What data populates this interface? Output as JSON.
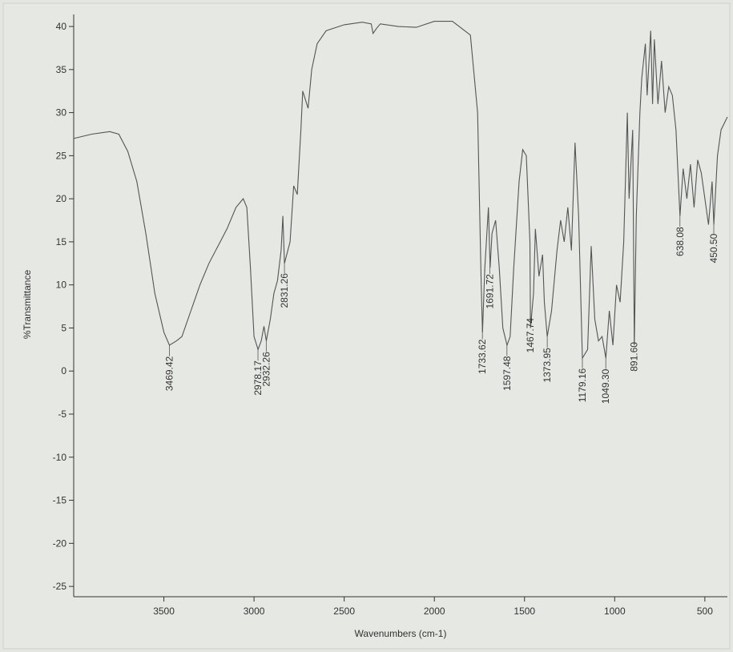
{
  "chart_data": {
    "type": "line",
    "y_label": "%Transmittance",
    "x_label": "Wavenumbers (cm-1)",
    "color": "#555555",
    "xlim": [
      4000,
      375
    ],
    "ylim": [
      -26.2,
      41.4
    ],
    "xticks": [
      3500,
      3000,
      2500,
      2000,
      1500,
      1000,
      500
    ],
    "yticks": [
      -25,
      -20,
      -15,
      -10,
      -5,
      0,
      5,
      10,
      15,
      20,
      25,
      30,
      35,
      40
    ],
    "x": [
      4000,
      3900,
      3800,
      3750,
      3700,
      3650,
      3600,
      3550,
      3500,
      3469,
      3430,
      3400,
      3350,
      3300,
      3250,
      3200,
      3150,
      3100,
      3060,
      3040,
      3020,
      3000,
      2978,
      2960,
      2945,
      2932,
      2910,
      2890,
      2870,
      2850,
      2840,
      2831,
      2800,
      2780,
      2760,
      2740,
      2730,
      2700,
      2680,
      2650,
      2600,
      2500,
      2400,
      2350,
      2340,
      2320,
      2300,
      2200,
      2100,
      2000,
      1900,
      1800,
      1760,
      1740,
      1733,
      1720,
      1700,
      1691,
      1680,
      1660,
      1640,
      1620,
      1597,
      1580,
      1560,
      1530,
      1510,
      1490,
      1470,
      1467,
      1450,
      1440,
      1420,
      1400,
      1390,
      1374,
      1350,
      1320,
      1300,
      1280,
      1260,
      1240,
      1220,
      1200,
      1179,
      1150,
      1130,
      1110,
      1090,
      1070,
      1049,
      1030,
      1010,
      990,
      970,
      950,
      930,
      920,
      900,
      891,
      880,
      860,
      850,
      830,
      820,
      800,
      790,
      780,
      760,
      740,
      720,
      700,
      680,
      660,
      638,
      620,
      600,
      580,
      560,
      540,
      520,
      500,
      480,
      460,
      450,
      430,
      410,
      375
    ],
    "values": [
      27,
      27.5,
      27.8,
      27.5,
      25.5,
      22,
      16,
      9,
      4.5,
      3,
      3.5,
      4,
      7,
      10,
      12.5,
      14.5,
      16.5,
      19,
      20,
      19,
      12,
      4,
      2.5,
      3.5,
      5.2,
      3.5,
      6,
      9,
      10.5,
      14,
      18,
      12.5,
      15,
      21.5,
      20.5,
      28,
      32.5,
      30.5,
      35,
      38,
      39.5,
      40.2,
      40.5,
      40.3,
      39.2,
      39.8,
      40.3,
      40,
      39.9,
      40.6,
      40.6,
      39,
      30,
      10,
      4.5,
      12,
      19,
      12,
      16,
      17.5,
      12,
      5,
      3,
      4,
      12,
      22,
      25.7,
      25,
      15,
      5,
      9,
      16.5,
      11,
      13.5,
      8,
      4,
      7,
      14,
      17.5,
      15,
      19,
      14,
      26.5,
      18,
      1.5,
      2.5,
      14.5,
      6,
      3.5,
      4,
      1.5,
      7,
      3,
      10,
      8,
      15,
      30,
      20,
      28,
      3,
      18,
      30,
      34,
      38,
      32,
      39.5,
      31,
      38.5,
      31,
      36,
      30,
      33,
      32,
      28,
      18,
      23.5,
      20,
      24,
      19,
      24.5,
      23,
      20,
      17,
      22,
      17,
      25,
      28,
      29.5
    ],
    "peaks": [
      3469.42,
      2978.17,
      2932.26,
      2831.26,
      1733.62,
      1691.72,
      1597.48,
      1467.74,
      1373.95,
      1179.16,
      {
        "value": 1049.3,
        "label": "1049.30"
      },
      {
        "value": 891.6,
        "label": "891.60"
      },
      638.08,
      {
        "value": 450.5,
        "label": "450.50"
      }
    ]
  }
}
